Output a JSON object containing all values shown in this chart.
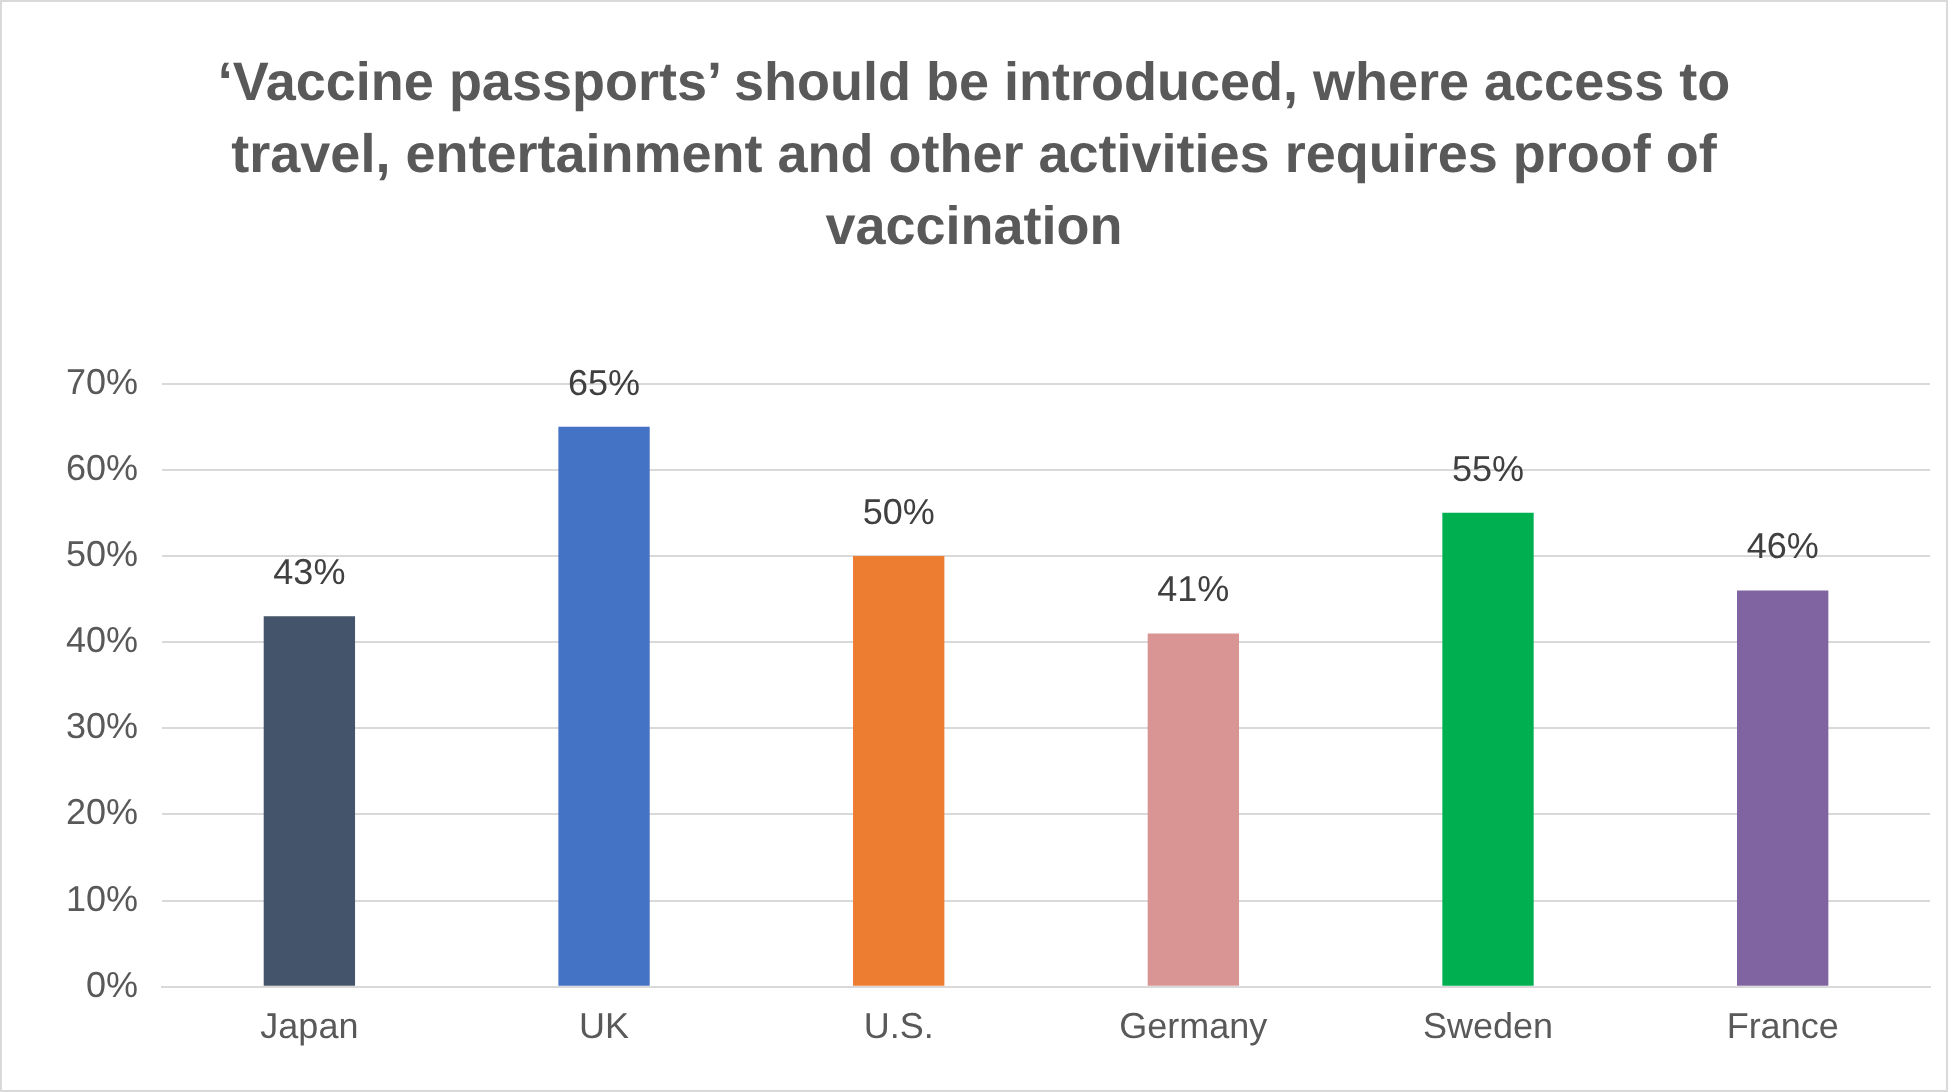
{
  "chart_data": {
    "type": "bar",
    "title": "‘Vaccine passports’ should be introduced, where access to travel, entertainment and other activities requires proof of vaccination",
    "categories": [
      "Japan",
      "UK",
      "U.S.",
      "Germany",
      "Sweden",
      "France"
    ],
    "values": [
      43,
      65,
      50,
      41,
      55,
      46
    ],
    "colors": [
      "#44546a",
      "#4472c4",
      "#ed7d31",
      "#d99594",
      "#00b050",
      "#8064a2"
    ],
    "value_labels": [
      "43%",
      "65%",
      "50%",
      "41%",
      "55%",
      "46%"
    ],
    "ylim": [
      0,
      70
    ],
    "yticks": [
      {
        "value": 0,
        "label": "0%"
      },
      {
        "value": 10,
        "label": "10%"
      },
      {
        "value": 20,
        "label": "20%"
      },
      {
        "value": 30,
        "label": "30%"
      },
      {
        "value": 40,
        "label": "40%"
      },
      {
        "value": 50,
        "label": "50%"
      },
      {
        "value": 60,
        "label": "60%"
      },
      {
        "value": 70,
        "label": "70%"
      }
    ],
    "grid": "y",
    "legend": false
  }
}
